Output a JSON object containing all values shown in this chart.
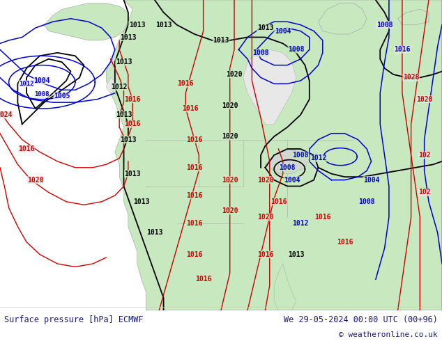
{
  "footer_left": "Surface pressure [hPa] ECMWF",
  "footer_right": "We 29-05-2024 00:00 UTC (00+96)",
  "footer_copy": "© weatheronline.co.uk",
  "ocean_color": "#e8e8e8",
  "land_color": "#c8e8c0",
  "land_edge": "#888888",
  "black_c": "#000000",
  "blue_c": "#0000cc",
  "red_c": "#cc0000",
  "footer_color": "#1a1a6e",
  "fig_width": 6.34,
  "fig_height": 4.9,
  "dpi": 100
}
